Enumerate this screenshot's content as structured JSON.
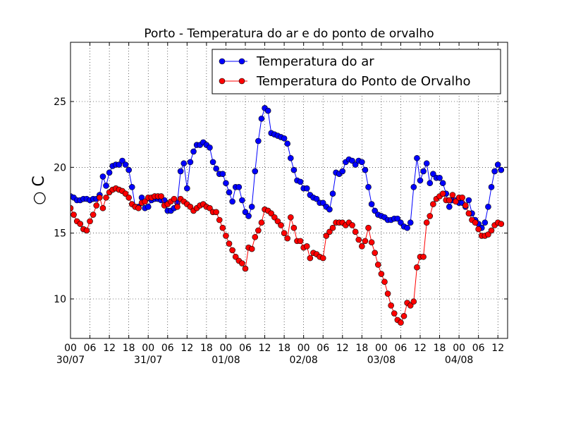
{
  "chart_data": {
    "type": "line",
    "title": "Porto - Temperatura do ar e do ponto de orvalho",
    "ylabel": "○ C",
    "xlabel": "",
    "ylim": [
      7,
      29.5
    ],
    "y_ticks": [
      10,
      15,
      20,
      25
    ],
    "x_unit": "hours since 00h 30/07",
    "xlim": [
      0,
      135
    ],
    "x_ticks": [
      {
        "x": 0,
        "hour": "00",
        "date": "30/07"
      },
      {
        "x": 6,
        "hour": "06",
        "date": ""
      },
      {
        "x": 12,
        "hour": "12",
        "date": ""
      },
      {
        "x": 18,
        "hour": "18",
        "date": ""
      },
      {
        "x": 24,
        "hour": "00",
        "date": "31/07"
      },
      {
        "x": 30,
        "hour": "06",
        "date": ""
      },
      {
        "x": 36,
        "hour": "12",
        "date": ""
      },
      {
        "x": 42,
        "hour": "18",
        "date": ""
      },
      {
        "x": 48,
        "hour": "00",
        "date": "01/08"
      },
      {
        "x": 54,
        "hour": "06",
        "date": ""
      },
      {
        "x": 60,
        "hour": "12",
        "date": ""
      },
      {
        "x": 66,
        "hour": "18",
        "date": ""
      },
      {
        "x": 72,
        "hour": "00",
        "date": "02/08"
      },
      {
        "x": 78,
        "hour": "06",
        "date": ""
      },
      {
        "x": 84,
        "hour": "12",
        "date": ""
      },
      {
        "x": 90,
        "hour": "18",
        "date": ""
      },
      {
        "x": 96,
        "hour": "00",
        "date": "03/08"
      },
      {
        "x": 102,
        "hour": "06",
        "date": ""
      },
      {
        "x": 108,
        "hour": "12",
        "date": ""
      },
      {
        "x": 114,
        "hour": "18",
        "date": ""
      },
      {
        "x": 120,
        "hour": "00",
        "date": "04/08"
      },
      {
        "x": 126,
        "hour": "06",
        "date": ""
      },
      {
        "x": 132,
        "hour": "12",
        "date": ""
      }
    ],
    "grid": true,
    "legend_position": "top-right",
    "series": [
      {
        "name": "Temperatura do ar",
        "color": "#0000ff",
        "points": [
          [
            0,
            17.8
          ],
          [
            1,
            17.7
          ],
          [
            2,
            17.5
          ],
          [
            3,
            17.5
          ],
          [
            4,
            17.6
          ],
          [
            5,
            17.6
          ],
          [
            6,
            17.5
          ],
          [
            7,
            17.6
          ],
          [
            8,
            17.6
          ],
          [
            9,
            17.9
          ],
          [
            10,
            19.3
          ],
          [
            11,
            18.6
          ],
          [
            12,
            19.6
          ],
          [
            13,
            20.1
          ],
          [
            14,
            20.2
          ],
          [
            15,
            20.2
          ],
          [
            16,
            20.5
          ],
          [
            17,
            20.2
          ],
          [
            18,
            19.8
          ],
          [
            19,
            18.5
          ],
          [
            20,
            17.0
          ],
          [
            21,
            17.0
          ],
          [
            22,
            17.7
          ],
          [
            23,
            16.9
          ],
          [
            24,
            17.0
          ],
          [
            25,
            17.5
          ],
          [
            26,
            17.6
          ],
          [
            27,
            17.6
          ],
          [
            28,
            17.5
          ],
          [
            29,
            17.5
          ],
          [
            30,
            16.7
          ],
          [
            31,
            16.7
          ],
          [
            32,
            16.9
          ],
          [
            33,
            17.3
          ],
          [
            34,
            19.7
          ],
          [
            35,
            20.3
          ],
          [
            36,
            18.4
          ],
          [
            37,
            20.4
          ],
          [
            38,
            21.2
          ],
          [
            39,
            21.7
          ],
          [
            40,
            21.7
          ],
          [
            41,
            21.9
          ],
          [
            42,
            21.7
          ],
          [
            43,
            21.5
          ],
          [
            44,
            20.4
          ],
          [
            45,
            19.9
          ],
          [
            46,
            19.5
          ],
          [
            47,
            19.5
          ],
          [
            48,
            18.8
          ],
          [
            49,
            18.1
          ],
          [
            50,
            17.4
          ],
          [
            51,
            18.5
          ],
          [
            52,
            18.5
          ],
          [
            53,
            17.5
          ],
          [
            54,
            16.6
          ],
          [
            55,
            16.3
          ],
          [
            56,
            17.0
          ],
          [
            57,
            19.7
          ],
          [
            58,
            22.0
          ],
          [
            59,
            23.7
          ],
          [
            60,
            24.5
          ],
          [
            61,
            24.3
          ],
          [
            62,
            22.6
          ],
          [
            63,
            22.5
          ],
          [
            64,
            22.4
          ],
          [
            65,
            22.3
          ],
          [
            66,
            22.2
          ],
          [
            67,
            21.8
          ],
          [
            68,
            20.7
          ],
          [
            69,
            19.8
          ],
          [
            70,
            19.0
          ],
          [
            71,
            18.9
          ],
          [
            72,
            18.4
          ],
          [
            73,
            18.4
          ],
          [
            74,
            17.9
          ],
          [
            75,
            17.7
          ],
          [
            76,
            17.6
          ],
          [
            77,
            17.3
          ],
          [
            78,
            17.3
          ],
          [
            79,
            17.0
          ],
          [
            80,
            16.8
          ],
          [
            81,
            18.0
          ],
          [
            82,
            19.6
          ],
          [
            83,
            19.5
          ],
          [
            84,
            19.7
          ],
          [
            85,
            20.4
          ],
          [
            86,
            20.6
          ],
          [
            87,
            20.5
          ],
          [
            88,
            20.2
          ],
          [
            89,
            20.5
          ],
          [
            90,
            20.4
          ],
          [
            91,
            19.8
          ],
          [
            92,
            18.5
          ],
          [
            93,
            17.2
          ],
          [
            94,
            16.7
          ],
          [
            95,
            16.4
          ],
          [
            96,
            16.3
          ],
          [
            97,
            16.2
          ],
          [
            98,
            16.0
          ],
          [
            99,
            16.0
          ],
          [
            100,
            16.1
          ],
          [
            101,
            16.1
          ],
          [
            102,
            15.8
          ],
          [
            103,
            15.5
          ],
          [
            104,
            15.4
          ],
          [
            105,
            15.8
          ],
          [
            106,
            18.5
          ],
          [
            107,
            20.7
          ],
          [
            108,
            19.0
          ],
          [
            109,
            19.7
          ],
          [
            110,
            20.3
          ],
          [
            111,
            18.8
          ],
          [
            112,
            19.5
          ],
          [
            113,
            19.2
          ],
          [
            114,
            19.2
          ],
          [
            115,
            18.8
          ],
          [
            116,
            18.0
          ],
          [
            117,
            17.0
          ],
          [
            118,
            17.5
          ],
          [
            119,
            17.5
          ],
          [
            120,
            17.3
          ],
          [
            121,
            17.3
          ],
          [
            122,
            17.0
          ],
          [
            123,
            17.5
          ],
          [
            124,
            16.5
          ],
          [
            125,
            16.0
          ],
          [
            126,
            15.7
          ],
          [
            127,
            15.4
          ],
          [
            128,
            15.8
          ],
          [
            129,
            17.0
          ],
          [
            130,
            18.5
          ],
          [
            131,
            19.7
          ],
          [
            132,
            20.2
          ],
          [
            133,
            19.8
          ]
        ]
      },
      {
        "name": "Temperatura do Ponto de Orvalho",
        "color": "#ff0000",
        "points": [
          [
            0,
            16.9
          ],
          [
            1,
            16.4
          ],
          [
            2,
            15.9
          ],
          [
            3,
            15.7
          ],
          [
            4,
            15.3
          ],
          [
            5,
            15.2
          ],
          [
            6,
            15.9
          ],
          [
            7,
            16.4
          ],
          [
            8,
            17.1
          ],
          [
            9,
            17.7
          ],
          [
            10,
            16.9
          ],
          [
            11,
            17.7
          ],
          [
            12,
            18.1
          ],
          [
            13,
            18.3
          ],
          [
            14,
            18.4
          ],
          [
            15,
            18.3
          ],
          [
            16,
            18.2
          ],
          [
            17,
            18.0
          ],
          [
            18,
            17.7
          ],
          [
            19,
            17.2
          ],
          [
            20,
            17.0
          ],
          [
            21,
            16.9
          ],
          [
            22,
            17.3
          ],
          [
            23,
            17.4
          ],
          [
            24,
            17.7
          ],
          [
            25,
            17.7
          ],
          [
            26,
            17.8
          ],
          [
            27,
            17.8
          ],
          [
            28,
            17.8
          ],
          [
            29,
            17.1
          ],
          [
            30,
            17.2
          ],
          [
            31,
            17.4
          ],
          [
            32,
            17.6
          ],
          [
            33,
            17.0
          ],
          [
            34,
            17.6
          ],
          [
            35,
            17.4
          ],
          [
            36,
            17.2
          ],
          [
            37,
            17.0
          ],
          [
            38,
            16.7
          ],
          [
            39,
            16.9
          ],
          [
            40,
            17.1
          ],
          [
            41,
            17.2
          ],
          [
            42,
            17.0
          ],
          [
            43,
            16.9
          ],
          [
            44,
            16.6
          ],
          [
            45,
            16.6
          ],
          [
            46,
            16.0
          ],
          [
            47,
            15.4
          ],
          [
            48,
            14.8
          ],
          [
            49,
            14.2
          ],
          [
            50,
            13.7
          ],
          [
            51,
            13.2
          ],
          [
            52,
            12.9
          ],
          [
            53,
            12.7
          ],
          [
            54,
            12.3
          ],
          [
            55,
            13.9
          ],
          [
            56,
            13.8
          ],
          [
            57,
            14.7
          ],
          [
            58,
            15.2
          ],
          [
            59,
            15.8
          ],
          [
            60,
            16.8
          ],
          [
            61,
            16.7
          ],
          [
            62,
            16.5
          ],
          [
            63,
            16.2
          ],
          [
            64,
            15.9
          ],
          [
            65,
            15.6
          ],
          [
            66,
            15.0
          ],
          [
            67,
            14.6
          ],
          [
            68,
            16.2
          ],
          [
            69,
            15.4
          ],
          [
            70,
            14.4
          ],
          [
            71,
            14.4
          ],
          [
            72,
            13.9
          ],
          [
            73,
            14.0
          ],
          [
            74,
            13.1
          ],
          [
            75,
            13.5
          ],
          [
            76,
            13.4
          ],
          [
            77,
            13.2
          ],
          [
            78,
            13.1
          ],
          [
            79,
            14.8
          ],
          [
            80,
            15.1
          ],
          [
            81,
            15.4
          ],
          [
            82,
            15.8
          ],
          [
            83,
            15.8
          ],
          [
            84,
            15.8
          ],
          [
            85,
            15.6
          ],
          [
            86,
            15.8
          ],
          [
            87,
            15.6
          ],
          [
            88,
            15.1
          ],
          [
            89,
            14.5
          ],
          [
            90,
            14.0
          ],
          [
            91,
            14.4
          ],
          [
            92,
            15.4
          ],
          [
            93,
            14.3
          ],
          [
            94,
            13.5
          ],
          [
            95,
            12.6
          ],
          [
            96,
            11.9
          ],
          [
            97,
            11.3
          ],
          [
            98,
            10.4
          ],
          [
            99,
            9.5
          ],
          [
            100,
            8.9
          ],
          [
            101,
            8.4
          ],
          [
            102,
            8.2
          ],
          [
            103,
            8.7
          ],
          [
            104,
            9.7
          ],
          [
            105,
            9.5
          ],
          [
            106,
            9.8
          ],
          [
            107,
            12.4
          ],
          [
            108,
            13.2
          ],
          [
            109,
            13.2
          ],
          [
            110,
            15.8
          ],
          [
            111,
            16.3
          ],
          [
            112,
            17.2
          ],
          [
            113,
            17.6
          ],
          [
            114,
            17.8
          ],
          [
            115,
            18.0
          ],
          [
            116,
            17.5
          ],
          [
            117,
            17.5
          ],
          [
            118,
            17.9
          ],
          [
            119,
            17.4
          ],
          [
            120,
            17.7
          ],
          [
            121,
            17.7
          ],
          [
            122,
            17.1
          ],
          [
            123,
            16.5
          ],
          [
            124,
            16.0
          ],
          [
            125,
            15.8
          ],
          [
            126,
            15.3
          ],
          [
            127,
            14.8
          ],
          [
            128,
            14.8
          ],
          [
            129,
            14.9
          ],
          [
            130,
            15.2
          ],
          [
            131,
            15.6
          ],
          [
            132,
            15.8
          ],
          [
            133,
            15.7
          ]
        ]
      }
    ]
  }
}
